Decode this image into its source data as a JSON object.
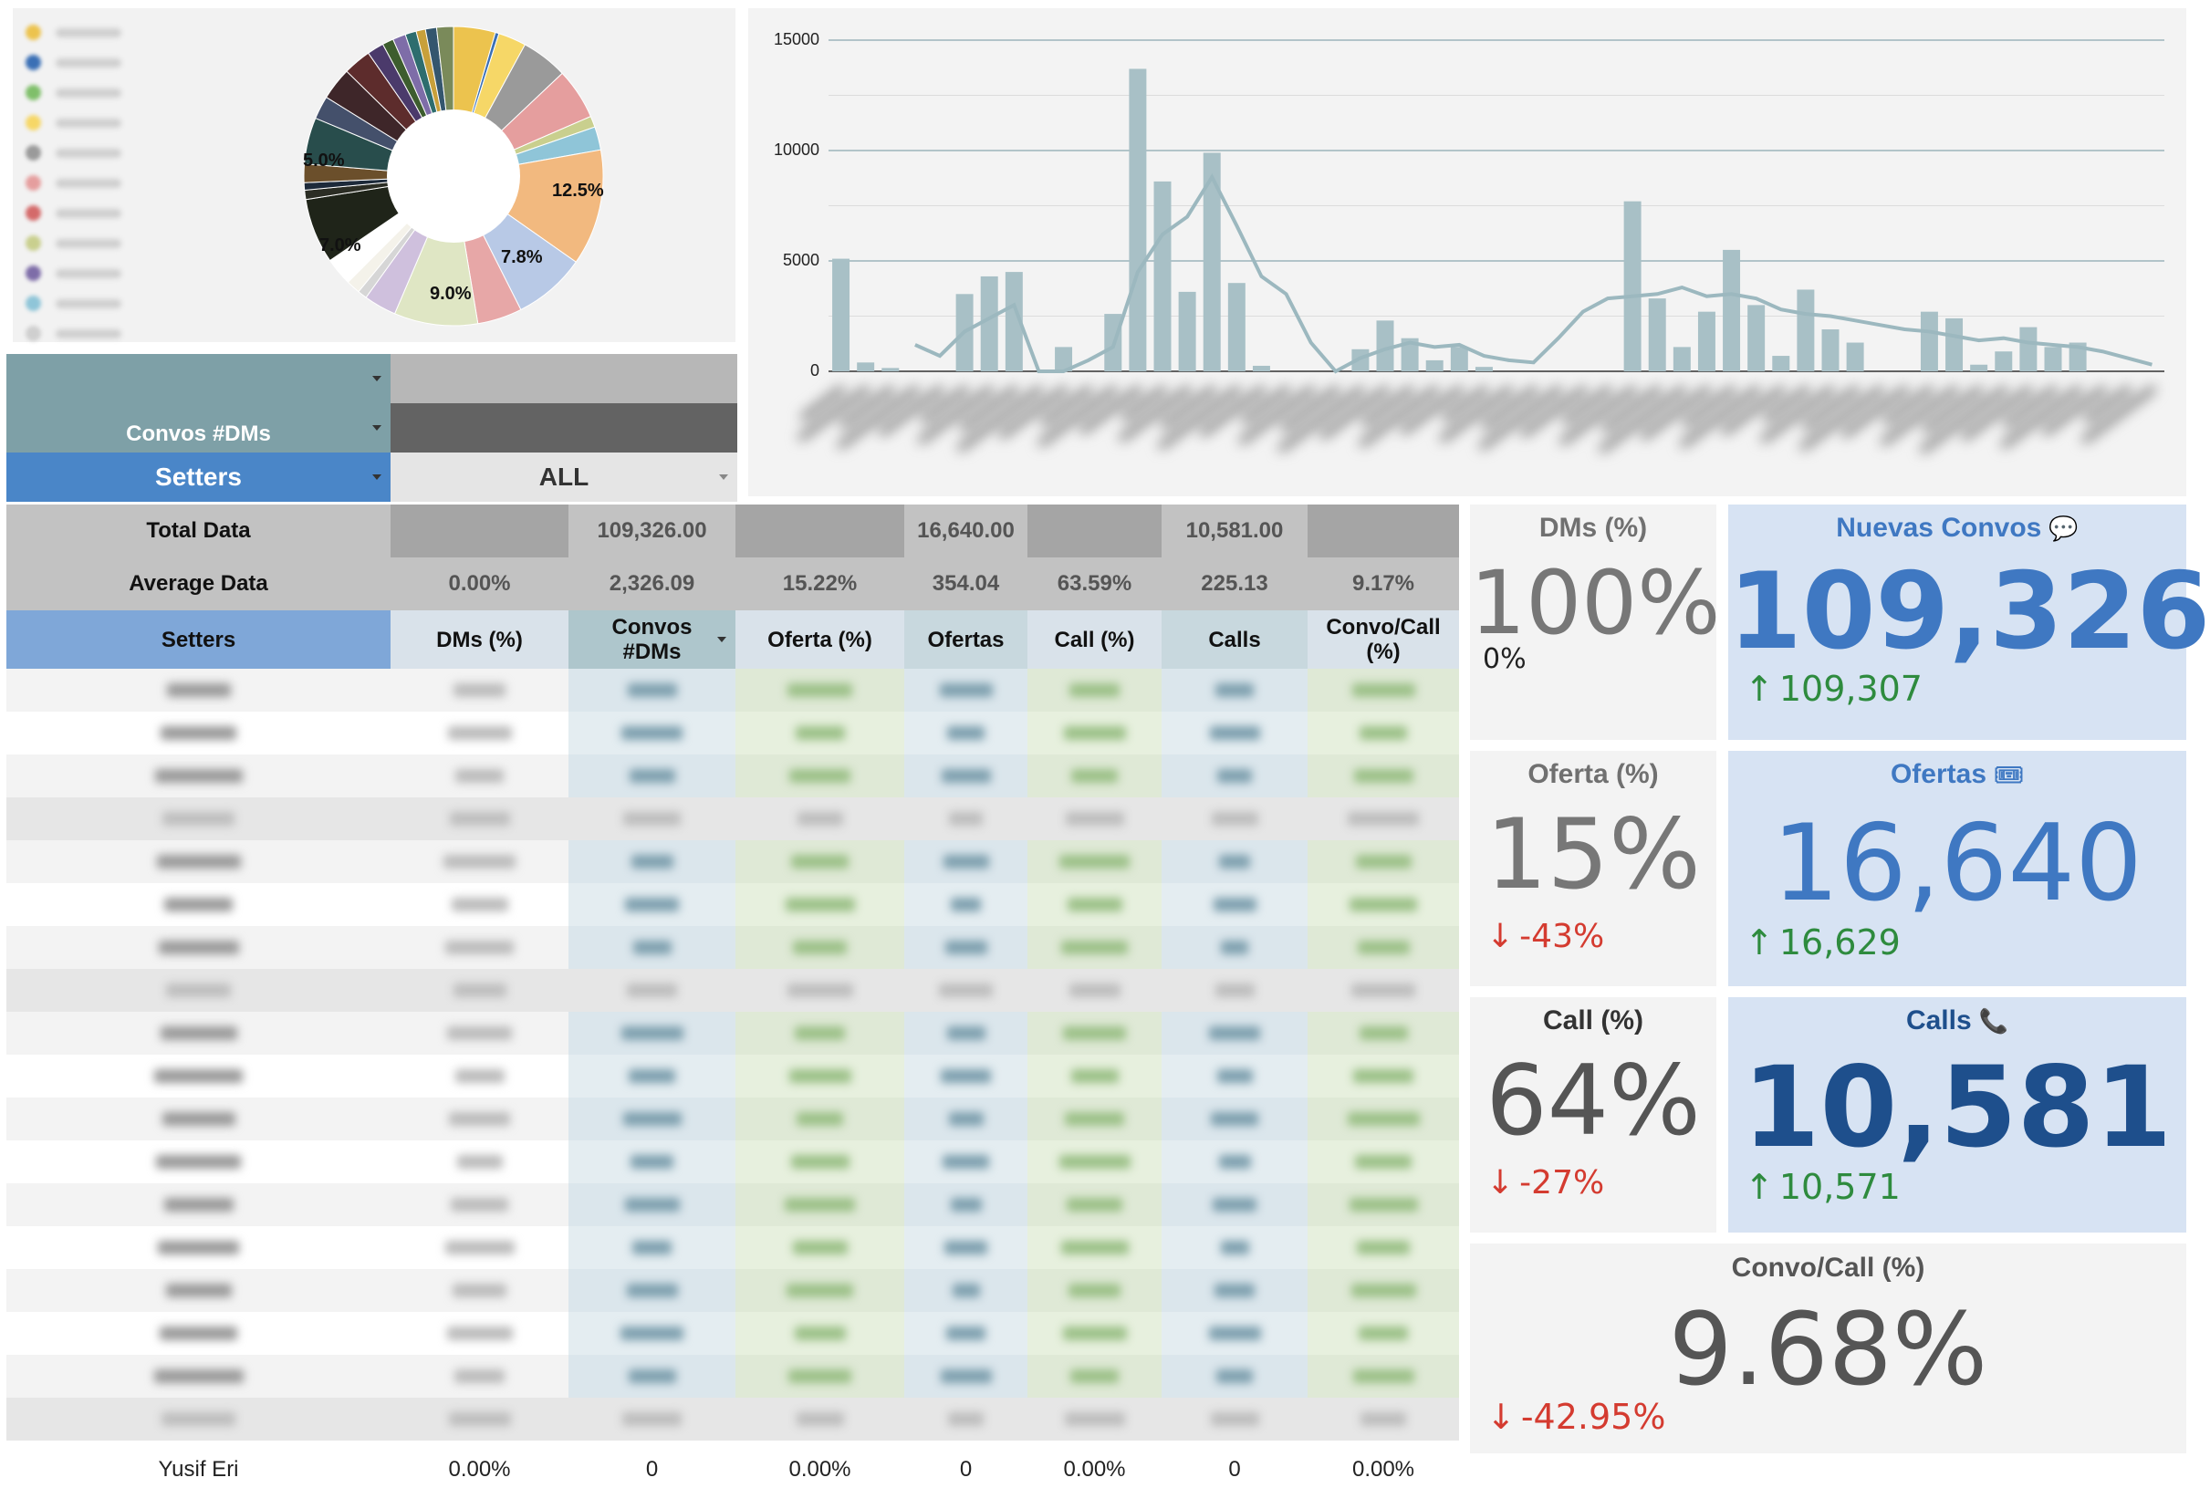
{
  "pie": {
    "labels": {
      "l1": "12.5%",
      "l2": "7.8%",
      "l3": "9.0%",
      "l4": "7.0%",
      "l5": "5.0%"
    },
    "colors": [
      "#ecc34e",
      "#3a6fb5",
      "#f6d767",
      "#9a9a9a",
      "#e59e9e",
      "#c9cf8e",
      "#8fc5d8",
      "#f2b97f",
      "#b8c9e6",
      "#e7a7a7",
      "#dfe6c4",
      "#cfc0dd",
      "#d6d6d6",
      "#f4f2ea",
      "#ffffff",
      "#1f2419",
      "#2b2d24",
      "#1d2a3a",
      "#6b4f2b",
      "#284d4c",
      "#44506b",
      "#3e2629",
      "#5d2c2c",
      "#4b3a6b",
      "#3d5d2e",
      "#7e6da8",
      "#2e6d6e",
      "#c8a03a",
      "#34566e",
      "#7a8a5a"
    ]
  },
  "bar_chart": {
    "y_ticks": [
      "15000",
      "10000",
      "5000",
      "0"
    ]
  },
  "controls": {
    "convos_dms_label": "Convos #DMs",
    "setters_label": "Setters",
    "setters_value": "ALL"
  },
  "summary": {
    "total_label": "Total Data",
    "average_label": "Average Data",
    "totals": [
      "",
      "109,326.00",
      "",
      "16,640.00",
      "",
      "10,581.00",
      ""
    ],
    "averages": [
      "0.00%",
      "2,326.09",
      "15.22%",
      "354.04",
      "63.59%",
      "225.13",
      "9.17%"
    ]
  },
  "table": {
    "headers": [
      "Setters",
      "DMs (%)",
      "Convos\n#DMs",
      "Oferta (%)",
      "Ofertas",
      "Call (%)",
      "Calls",
      "Convo/Call\n(%)"
    ],
    "partial_row": [
      "Yusif Eri",
      "0.00%",
      "0",
      "0.00%",
      "0",
      "0.00%",
      "0",
      "0.00%"
    ]
  },
  "cards": {
    "dms_pct": {
      "title": "DMs (%)",
      "value": "100%",
      "sub": "0%"
    },
    "convos": {
      "title": "Nuevas Convos",
      "icon": "speech-bubble-icon",
      "value": "109,326",
      "delta": "109,307",
      "dir": "up"
    },
    "oferta_pct": {
      "title": "Oferta (%)",
      "value": "15%",
      "delta": "-43%",
      "dir": "down"
    },
    "ofertas": {
      "title": "Ofertas",
      "icon": "ticket-icon",
      "value": "16,640",
      "delta": "16,629",
      "dir": "up"
    },
    "call_pct": {
      "title": "Call (%)",
      "value": "64%",
      "delta": "-27%",
      "dir": "down"
    },
    "calls": {
      "title": "Calls",
      "icon": "phone-icon",
      "value": "10,581",
      "delta": "10,571",
      "dir": "up"
    },
    "convo_call_pct": {
      "title": "Convo/Call (%)",
      "value": "9.68%",
      "delta": "-42.95%",
      "dir": "down"
    }
  },
  "theme": {
    "teal_header": "#7ea0a7",
    "blue_header": "#4a86c8",
    "light_blue_header": "#7fa7d8",
    "summary_gray": "#c2c2c2",
    "dark_gray": "#636363",
    "card_blue": "#d7e3f3",
    "accent_blue": "#3f78c2",
    "dark_blue": "#1e4f8c",
    "up_green": "#2e8b3e",
    "down_red": "#d43b30"
  }
}
